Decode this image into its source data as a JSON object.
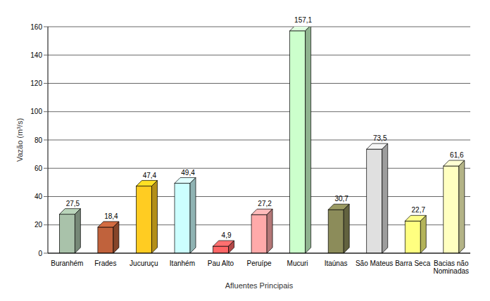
{
  "chart_data": {
    "type": "bar",
    "categories": [
      "Buranhém",
      "Frades",
      "Jucuruçu",
      "Itanhém",
      "Pau Alto",
      "Peruípe",
      "Mucuri",
      "Itaúnas",
      "São Mateus",
      "Barra Seca",
      "Bacias não Nominadas"
    ],
    "values": [
      27.5,
      18.4,
      47.4,
      49.4,
      4.9,
      27.2,
      157.1,
      30.7,
      73.5,
      22.7,
      61.6
    ],
    "value_labels": [
      "27,5",
      "18,4",
      "47,4",
      "49,4",
      "4,9",
      "27,2",
      "157,1",
      "30,7",
      "73,5",
      "22,7",
      "61,6"
    ],
    "colors": [
      "#a9c2aa",
      "#c0623c",
      "#ffcc22",
      "#ccffff",
      "#ff6666",
      "#ffaaaa",
      "#ccffcc",
      "#8c8c5a",
      "#e0e0e0",
      "#ffff80",
      "#ffffc0"
    ],
    "x_label": "Afluentes Principais",
    "y_label": "Vazão (m³/s)",
    "ylim": [
      0,
      160
    ],
    "yticks": [
      0,
      20,
      40,
      60,
      80,
      100,
      120,
      140,
      160
    ],
    "grid": true,
    "data_labels": true
  }
}
